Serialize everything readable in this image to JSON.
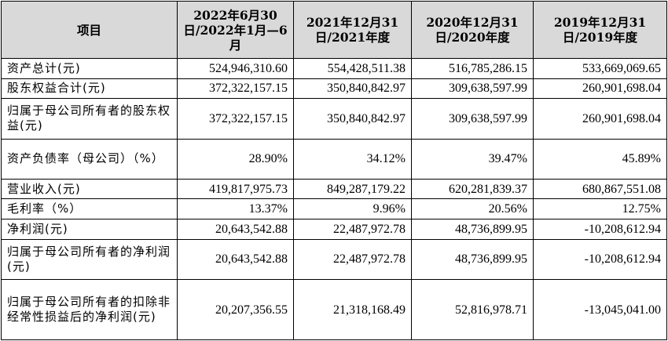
{
  "table": {
    "headers": [
      "项目",
      "2022年6月30日/2022年1月—6月",
      "2021年12月31日/2021年度",
      "2020年12月31日/2020年度",
      "2019年12月31日/2019年度"
    ],
    "rows": [
      {
        "label": "资产总计(元)",
        "values": [
          "524,946,310.60",
          "554,428,511.38",
          "516,785,286.15",
          "533,669,069.65"
        ]
      },
      {
        "label": "股东权益合计(元)",
        "values": [
          "372,322,157.15",
          "350,840,842.97",
          "309,638,597.99",
          "260,901,698.04"
        ]
      },
      {
        "label": "归属于母公司所有者的股东权益(元)",
        "values": [
          "372,322,157.15",
          "350,840,842.97",
          "309,638,597.99",
          "260,901,698.04"
        ]
      },
      {
        "label": "资产负债率（母公司）（%）",
        "values": [
          "28.90%",
          "34.12%",
          "39.47%",
          "45.89%"
        ]
      },
      {
        "label": "营业收入(元)",
        "values": [
          "419,817,975.73",
          "849,287,179.22",
          "620,281,839.37",
          "680,867,551.08"
        ]
      },
      {
        "label": "毛利率（%）",
        "values": [
          "13.37%",
          "9.96%",
          "20.56%",
          "12.75%"
        ]
      },
      {
        "label": "净利润(元)",
        "values": [
          "20,643,542.88",
          "22,487,972.78",
          "48,736,899.95",
          "-10,208,612.94"
        ]
      },
      {
        "label": "归属于母公司所有者的净利润(元)",
        "values": [
          "20,643,542.88",
          "22,487,972.78",
          "48,736,899.95",
          "-10,208,612.94"
        ]
      },
      {
        "label": "归属于母公司所有者的扣除非经常性损益后的净利润(元)",
        "values": [
          "20,207,356.55",
          "21,318,168.49",
          "52,816,978.71",
          "-13,045,041.00"
        ]
      }
    ]
  }
}
